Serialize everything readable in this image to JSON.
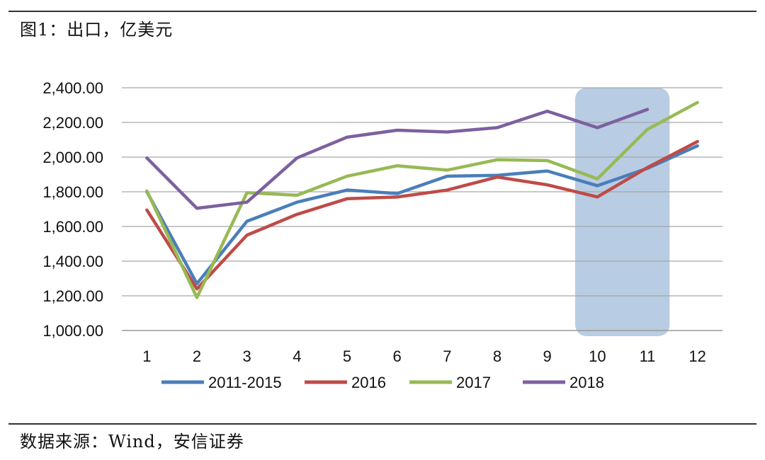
{
  "figure_title": "图1：出口，亿美元",
  "source": "数据来源：Wind，安信证券",
  "chart_data": {
    "type": "line",
    "title": "",
    "xlabel": "",
    "ylabel": "",
    "categories": [
      "1",
      "2",
      "3",
      "4",
      "5",
      "6",
      "7",
      "8",
      "9",
      "10",
      "11",
      "12"
    ],
    "ylim": [
      1000,
      2400
    ],
    "yticks": [
      "1,000.00",
      "1,200.00",
      "1,400.00",
      "1,600.00",
      "1,800.00",
      "2,000.00",
      "2,200.00",
      "2,400.00"
    ],
    "grid": true,
    "legend_position": "bottom",
    "highlight": {
      "from": "10",
      "to": "11",
      "color": "#b8cde3"
    },
    "series": [
      {
        "name": "2011-2015",
        "color": "#4a7ebb",
        "values": [
          1800,
          1270,
          1630,
          1740,
          1810,
          1790,
          1890,
          1895,
          1920,
          1835,
          1935,
          2065
        ]
      },
      {
        "name": "2016",
        "color": "#be4b48",
        "values": [
          1695,
          1240,
          1550,
          1670,
          1760,
          1770,
          1810,
          1885,
          1840,
          1770,
          1940,
          2090
        ]
      },
      {
        "name": "2017",
        "color": "#98b954",
        "values": [
          1805,
          1190,
          1795,
          1780,
          1890,
          1950,
          1925,
          1985,
          1980,
          1875,
          2160,
          2315
        ]
      },
      {
        "name": "2018",
        "color": "#7d60a0",
        "values": [
          1995,
          1705,
          1740,
          1995,
          2115,
          2155,
          2145,
          2170,
          2265,
          2170,
          2275,
          null
        ]
      }
    ]
  }
}
